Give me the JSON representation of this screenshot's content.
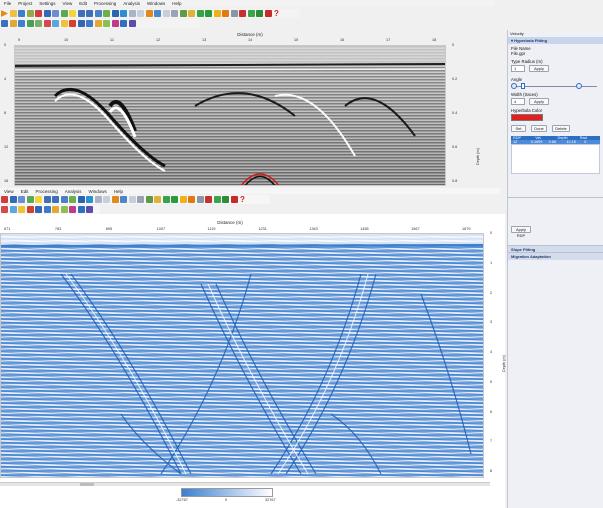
{
  "top_window": {
    "menu": [
      "File",
      "Project",
      "Settings",
      "View",
      "Edit",
      "Processing",
      "Analysis",
      "Windows",
      "Help"
    ],
    "plot": {
      "x_title": "Distance (m)",
      "x_ticks": [
        "9",
        "10",
        "11",
        "12",
        "13",
        "14",
        "15",
        "16",
        "17",
        "18"
      ],
      "y_ticks_left": [
        "0",
        "4",
        "8",
        "12",
        "16"
      ],
      "y_ticks_right": [
        "0",
        "0.2",
        "0.4",
        "0.6",
        "0.8"
      ],
      "y_title_right": "Depth (m)"
    }
  },
  "bottom_window": {
    "menu": [
      "View",
      "Edit",
      "Processing",
      "Analysis",
      "Windows",
      "Help"
    ],
    "plot": {
      "x_title": "Distance (m)",
      "x_ticks": [
        "671",
        "783",
        "895",
        "1007",
        "1119",
        "1231",
        "1343",
        "1455",
        "1567",
        "1679"
      ],
      "y_ticks_right": [
        "0",
        "1",
        "2",
        "3",
        "4",
        "5",
        "6",
        "7",
        "8"
      ],
      "y_title_right": "Depth (m)"
    },
    "colorbar": {
      "min": "-32767",
      "mid": "0",
      "max": "32767",
      "start_color": "#3a7fd0",
      "end_color": "#ffffff"
    }
  },
  "right_panel": {
    "title": "Velocity",
    "section": "Hyperbola Fitting",
    "file_name_label": "File Name",
    "file_name_value": "File.gpr",
    "type_radius_label": "Type Radius (m)",
    "type_radius_value": "1",
    "apply_label": "Apply",
    "angle_label": "Angle",
    "width_label": "Width (traces)",
    "width_value": "4",
    "color_label": "Hyperbola Color",
    "hyperbola_color": "#e5201c",
    "buttons": [
      "Set",
      "Done",
      "Delete"
    ],
    "grid": {
      "headers": [
        "RDP",
        "Vel.",
        "Depth",
        "Rad."
      ],
      "rows": [
        [
          "12",
          "0.1009",
          "0.66",
          "12.16",
          "0"
        ]
      ]
    },
    "apply_rdp_label": "Apply RDP",
    "sections": [
      "Slope Fitting",
      "Migration Adaptation"
    ]
  },
  "colors": {
    "accent": "#2d6fc2",
    "plot_blue": "#3a7fd0"
  }
}
